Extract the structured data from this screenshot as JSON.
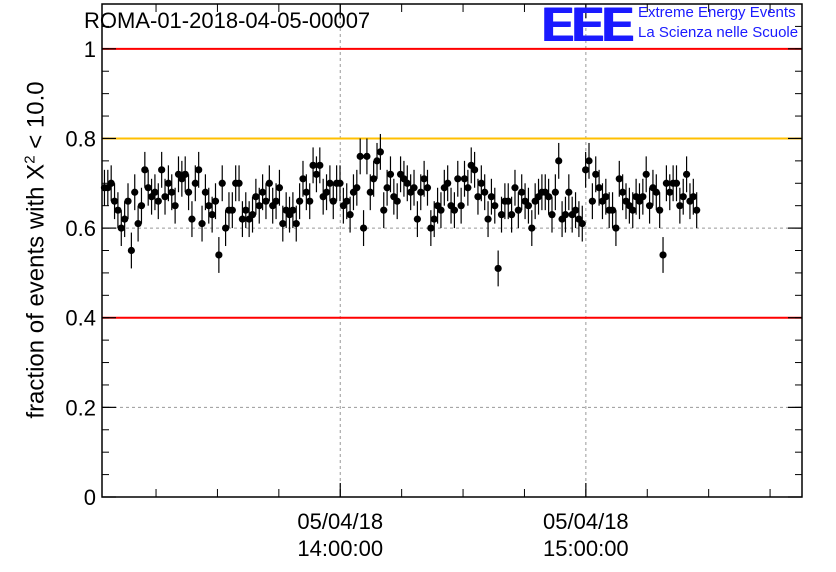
{
  "header": {
    "run_title": "ROMA-01-2018-04-05-00007"
  },
  "logo": {
    "mark": "EEE",
    "line1": "Extreme Energy Events",
    "line2": "La Scienza nelle Scuole"
  },
  "axis": {
    "ylabel_prefix": "fraction of events with ",
    "ylabel_symbol": "X",
    "ylabel_sup": "2",
    "ylabel_suffix": " < 10.0"
  },
  "colors": {
    "red_line": "#ff0000",
    "yellow_line": "#ffbf00",
    "points": "#000000",
    "logo_blue": "#1a1aff"
  },
  "chart_data": {
    "type": "scatter",
    "title": "ROMA-01-2018-04-05-00007",
    "ylabel": "fraction of events with X^2 < 10.0",
    "ylim": [
      0,
      1.1
    ],
    "yticks": [
      0,
      0.2,
      0.4,
      0.6,
      0.8,
      1
    ],
    "ytick_labels": [
      "0",
      "0.2",
      "0.4",
      "0.6",
      "0.8",
      "1"
    ],
    "xlim_hours": [
      13.03,
      15.88
    ],
    "xticks": [
      {
        "x_hours": 14,
        "label_date": "05/04/18",
        "label_time": "14:00:00"
      },
      {
        "x_hours": 15,
        "label_date": "05/04/18",
        "label_time": "15:00:00"
      }
    ],
    "grid": true,
    "reference_lines": [
      {
        "y": 1.0,
        "color": "red"
      },
      {
        "y": 0.8,
        "color": "yellow"
      },
      {
        "y": 0.4,
        "color": "red"
      }
    ],
    "error": 0.04,
    "series": [
      {
        "x_start_hours": 13.04,
        "x_step_hours": 0.0137,
        "values": [
          0.69,
          0.69,
          0.7,
          0.66,
          0.64,
          0.6,
          0.62,
          0.66,
          0.55,
          0.68,
          0.61,
          0.65,
          0.73,
          0.69,
          0.67,
          0.68,
          0.66,
          0.73,
          0.67,
          0.7,
          0.68,
          0.65,
          0.72,
          0.71,
          0.72,
          0.68,
          0.62,
          0.7,
          0.73,
          0.61,
          0.68,
          0.65,
          0.63,
          0.66,
          0.54,
          0.7,
          0.6,
          0.64,
          0.64,
          0.7,
          0.7,
          0.62,
          0.64,
          0.62,
          0.63,
          0.67,
          0.65,
          0.68,
          0.66,
          0.7,
          0.65,
          0.66,
          0.69,
          0.61,
          0.64,
          0.63,
          0.64,
          0.61,
          0.66,
          0.71,
          0.68,
          0.66,
          0.74,
          0.72,
          0.74,
          0.67,
          0.68,
          0.7,
          0.66,
          0.7,
          0.7,
          0.65,
          0.66,
          0.63,
          0.68,
          0.69,
          0.76,
          0.6,
          0.76,
          0.68,
          0.71,
          0.75,
          0.77,
          0.64,
          0.69,
          0.72,
          0.67,
          0.66,
          0.72,
          0.71,
          0.7,
          0.68,
          0.69,
          0.62,
          0.68,
          0.71,
          0.69,
          0.6,
          0.62,
          0.65,
          0.64,
          0.69,
          0.7,
          0.65,
          0.64,
          0.71,
          0.65,
          0.71,
          0.69,
          0.74,
          0.73,
          0.67,
          0.7,
          0.68,
          0.62,
          0.67,
          0.65,
          0.51,
          0.63,
          0.66,
          0.66,
          0.63,
          0.69,
          0.64,
          0.68,
          0.66,
          0.65,
          0.6,
          0.66,
          0.67,
          0.68,
          0.68,
          0.67,
          0.63,
          0.68,
          0.75,
          0.62,
          0.63,
          0.68,
          0.63,
          0.64,
          0.62,
          0.61,
          0.73,
          0.75,
          0.66,
          0.72,
          0.69,
          0.66,
          0.67,
          0.64,
          0.64,
          0.6,
          0.71,
          0.68,
          0.66,
          0.65,
          0.64,
          0.67,
          0.66,
          0.67,
          0.72,
          0.65,
          0.69,
          0.68,
          0.64,
          0.54,
          0.7,
          0.68,
          0.7,
          0.7,
          0.65,
          0.67,
          0.72,
          0.66,
          0.67,
          0.64
        ]
      }
    ]
  }
}
